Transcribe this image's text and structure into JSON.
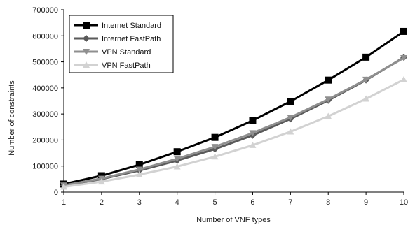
{
  "chart_data": {
    "type": "line",
    "title": "",
    "xlabel": "Number of VNF types",
    "ylabel": "Number of constraints",
    "xlim": [
      1,
      10
    ],
    "ylim": [
      0,
      700000
    ],
    "x": [
      1,
      2,
      3,
      4,
      5,
      6,
      7,
      8,
      9,
      10
    ],
    "x_ticks": [
      "1",
      "2",
      "3",
      "4",
      "5",
      "6",
      "7",
      "8",
      "9",
      "10"
    ],
    "y_tick_values": [
      0,
      100000,
      200000,
      300000,
      400000,
      500000,
      600000,
      700000
    ],
    "y_ticks": [
      "0",
      "100000",
      "200000",
      "300000",
      "400000",
      "500000",
      "600000",
      "700000"
    ],
    "grid": false,
    "legend_position": "top-left",
    "series": [
      {
        "name": "Internet Standard",
        "color": "#000000",
        "marker": "square",
        "values": [
          31000,
          63000,
          105000,
          155000,
          210000,
          275000,
          348000,
          430000,
          518000,
          617000
        ]
      },
      {
        "name": "Internet FastPath",
        "color": "#5a5a5a",
        "marker": "diamond",
        "values": [
          25000,
          50000,
          83000,
          121000,
          165000,
          218000,
          281000,
          352000,
          430000,
          517000
        ]
      },
      {
        "name": "VPN Standard",
        "color": "#8f8f8f",
        "marker": "triangle-down",
        "values": [
          26000,
          52000,
          87000,
          128000,
          174000,
          227000,
          287000,
          356000,
          432000,
          515000
        ]
      },
      {
        "name": "VPN FastPath",
        "color": "#d2d2d2",
        "marker": "triangle-up",
        "values": [
          20000,
          40000,
          67000,
          98000,
          136000,
          180000,
          232000,
          291000,
          358000,
          432000
        ]
      }
    ]
  }
}
